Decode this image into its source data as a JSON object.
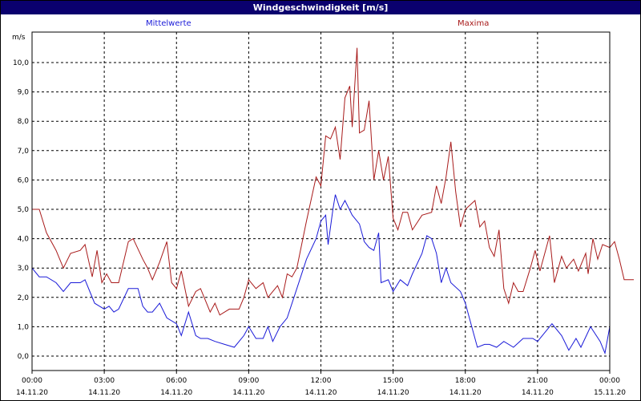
{
  "window": {
    "title": "Windgeschwindigkeit [m/s]"
  },
  "chart_data": {
    "type": "line",
    "title": "Windgeschwindigkeit [m/s]",
    "ylabel": "m/s",
    "ylim": [
      -0.4,
      11.2
    ],
    "xlim": [
      0,
      24
    ],
    "grid": true,
    "yticks": [
      "0,0",
      "1,0",
      "2,0",
      "3,0",
      "4,0",
      "5,0",
      "6,0",
      "7,0",
      "8,0",
      "9,0",
      "10,0"
    ],
    "xticks": [
      {
        "time": "00:00",
        "date": "14.11.20"
      },
      {
        "time": "03:00",
        "date": "14.11.20"
      },
      {
        "time": "06:00",
        "date": "14.11.20"
      },
      {
        "time": "09:00",
        "date": "14.11.20"
      },
      {
        "time": "12:00",
        "date": "14.11.20"
      },
      {
        "time": "15:00",
        "date": "14.11.20"
      },
      {
        "time": "18:00",
        "date": "14.11.20"
      },
      {
        "time": "21:00",
        "date": "14.11.20"
      },
      {
        "time": "00:00",
        "date": "15.11.20"
      }
    ],
    "series": [
      {
        "name": "Mittelwerte",
        "color": "#1a1ad8",
        "values": [
          [
            0,
            3.0
          ],
          [
            0.3,
            2.7
          ],
          [
            0.6,
            2.7
          ],
          [
            1.0,
            2.5
          ],
          [
            1.3,
            2.2
          ],
          [
            1.6,
            2.5
          ],
          [
            2.0,
            2.5
          ],
          [
            2.2,
            2.6
          ],
          [
            2.4,
            2.2
          ],
          [
            2.6,
            1.8
          ],
          [
            3.0,
            1.6
          ],
          [
            3.2,
            1.7
          ],
          [
            3.4,
            1.5
          ],
          [
            3.6,
            1.6
          ],
          [
            4.0,
            2.3
          ],
          [
            4.4,
            2.3
          ],
          [
            4.6,
            1.7
          ],
          [
            4.8,
            1.5
          ],
          [
            5.0,
            1.5
          ],
          [
            5.3,
            1.8
          ],
          [
            5.6,
            1.3
          ],
          [
            6.0,
            1.1
          ],
          [
            6.2,
            0.7
          ],
          [
            6.5,
            1.5
          ],
          [
            6.8,
            0.7
          ],
          [
            7.0,
            0.6
          ],
          [
            7.3,
            0.6
          ],
          [
            7.6,
            0.5
          ],
          [
            8.0,
            0.4
          ],
          [
            8.4,
            0.3
          ],
          [
            8.8,
            0.7
          ],
          [
            9.0,
            1.0
          ],
          [
            9.3,
            0.6
          ],
          [
            9.6,
            0.6
          ],
          [
            9.8,
            1.0
          ],
          [
            10.0,
            0.5
          ],
          [
            10.3,
            1.0
          ],
          [
            10.6,
            1.3
          ],
          [
            11.0,
            2.3
          ],
          [
            11.4,
            3.3
          ],
          [
            11.8,
            4.0
          ],
          [
            12.0,
            4.6
          ],
          [
            12.2,
            4.8
          ],
          [
            12.3,
            3.8
          ],
          [
            12.5,
            5.0
          ],
          [
            12.6,
            5.5
          ],
          [
            12.8,
            5.0
          ],
          [
            13.0,
            5.3
          ],
          [
            13.3,
            4.8
          ],
          [
            13.6,
            4.5
          ],
          [
            13.8,
            3.9
          ],
          [
            14.0,
            3.7
          ],
          [
            14.2,
            3.6
          ],
          [
            14.4,
            4.2
          ],
          [
            14.5,
            2.5
          ],
          [
            14.8,
            2.6
          ],
          [
            15.0,
            2.2
          ],
          [
            15.3,
            2.6
          ],
          [
            15.6,
            2.4
          ],
          [
            15.8,
            2.8
          ],
          [
            16.2,
            3.5
          ],
          [
            16.4,
            4.1
          ],
          [
            16.6,
            4.0
          ],
          [
            16.8,
            3.5
          ],
          [
            17.0,
            2.5
          ],
          [
            17.2,
            3.0
          ],
          [
            17.4,
            2.5
          ],
          [
            17.8,
            2.2
          ],
          [
            18.0,
            1.8
          ],
          [
            18.3,
            0.9
          ],
          [
            18.5,
            0.3
          ],
          [
            18.8,
            0.4
          ],
          [
            19.0,
            0.4
          ],
          [
            19.3,
            0.3
          ],
          [
            19.6,
            0.5
          ],
          [
            20.0,
            0.3
          ],
          [
            20.4,
            0.6
          ],
          [
            20.8,
            0.6
          ],
          [
            21.0,
            0.5
          ],
          [
            21.3,
            0.8
          ],
          [
            21.6,
            1.1
          ],
          [
            22.0,
            0.7
          ],
          [
            22.3,
            0.2
          ],
          [
            22.6,
            0.6
          ],
          [
            22.8,
            0.3
          ],
          [
            23.2,
            1.0
          ],
          [
            23.6,
            0.5
          ],
          [
            23.8,
            0.1
          ],
          [
            24.0,
            1.0
          ]
        ]
      },
      {
        "name": "Maxima",
        "color": "#a81a1a",
        "values": [
          [
            0,
            5.0
          ],
          [
            0.3,
            5.0
          ],
          [
            0.6,
            4.2
          ],
          [
            1.0,
            3.6
          ],
          [
            1.3,
            3.0
          ],
          [
            1.6,
            3.5
          ],
          [
            2.0,
            3.6
          ],
          [
            2.2,
            3.8
          ],
          [
            2.5,
            2.7
          ],
          [
            2.7,
            3.6
          ],
          [
            2.9,
            2.5
          ],
          [
            3.1,
            2.8
          ],
          [
            3.3,
            2.5
          ],
          [
            3.6,
            2.5
          ],
          [
            4.0,
            3.9
          ],
          [
            4.2,
            4.0
          ],
          [
            4.6,
            3.3
          ],
          [
            4.8,
            3.0
          ],
          [
            5.0,
            2.6
          ],
          [
            5.3,
            3.2
          ],
          [
            5.6,
            3.9
          ],
          [
            5.8,
            2.5
          ],
          [
            6.0,
            2.3
          ],
          [
            6.2,
            2.9
          ],
          [
            6.5,
            1.7
          ],
          [
            6.8,
            2.2
          ],
          [
            7.0,
            2.3
          ],
          [
            7.4,
            1.5
          ],
          [
            7.6,
            1.8
          ],
          [
            7.8,
            1.4
          ],
          [
            8.2,
            1.6
          ],
          [
            8.6,
            1.6
          ],
          [
            8.8,
            2.0
          ],
          [
            9.0,
            2.6
          ],
          [
            9.3,
            2.3
          ],
          [
            9.6,
            2.5
          ],
          [
            9.8,
            2.0
          ],
          [
            10.2,
            2.4
          ],
          [
            10.4,
            2.0
          ],
          [
            10.6,
            2.8
          ],
          [
            10.8,
            2.7
          ],
          [
            11.0,
            3.0
          ],
          [
            11.2,
            3.8
          ],
          [
            11.4,
            4.6
          ],
          [
            11.8,
            6.1
          ],
          [
            12.0,
            5.8
          ],
          [
            12.2,
            7.5
          ],
          [
            12.4,
            7.4
          ],
          [
            12.6,
            7.8
          ],
          [
            12.8,
            6.7
          ],
          [
            13.0,
            8.8
          ],
          [
            13.2,
            9.2
          ],
          [
            13.3,
            7.8
          ],
          [
            13.5,
            10.5
          ],
          [
            13.6,
            7.6
          ],
          [
            13.8,
            7.7
          ],
          [
            14.0,
            8.7
          ],
          [
            14.2,
            6.0
          ],
          [
            14.4,
            7.0
          ],
          [
            14.6,
            6.0
          ],
          [
            14.8,
            6.8
          ],
          [
            15.0,
            4.7
          ],
          [
            15.2,
            4.3
          ],
          [
            15.4,
            4.9
          ],
          [
            15.6,
            4.9
          ],
          [
            15.8,
            4.3
          ],
          [
            16.2,
            4.8
          ],
          [
            16.6,
            4.9
          ],
          [
            16.8,
            5.8
          ],
          [
            17.0,
            5.2
          ],
          [
            17.2,
            6.1
          ],
          [
            17.4,
            7.3
          ],
          [
            17.6,
            5.6
          ],
          [
            17.8,
            4.4
          ],
          [
            18.0,
            5.0
          ],
          [
            18.4,
            5.3
          ],
          [
            18.6,
            4.4
          ],
          [
            18.8,
            4.6
          ],
          [
            19.0,
            3.7
          ],
          [
            19.2,
            3.4
          ],
          [
            19.4,
            4.3
          ],
          [
            19.6,
            2.3
          ],
          [
            19.8,
            1.8
          ],
          [
            20.0,
            2.5
          ],
          [
            20.2,
            2.2
          ],
          [
            20.4,
            2.2
          ],
          [
            20.7,
            3.0
          ],
          [
            20.9,
            3.6
          ],
          [
            21.1,
            2.9
          ],
          [
            21.5,
            4.1
          ],
          [
            21.7,
            2.5
          ],
          [
            22.0,
            3.4
          ],
          [
            22.2,
            3.0
          ],
          [
            22.5,
            3.3
          ],
          [
            22.7,
            2.9
          ],
          [
            23.0,
            3.5
          ],
          [
            23.1,
            2.8
          ],
          [
            23.3,
            4.0
          ],
          [
            23.5,
            3.3
          ],
          [
            23.7,
            3.8
          ],
          [
            24.0,
            3.7
          ],
          [
            24.2,
            3.9
          ],
          [
            24.4,
            3.3
          ],
          [
            24.6,
            2.6
          ],
          [
            25.0,
            2.6
          ]
        ]
      }
    ]
  }
}
